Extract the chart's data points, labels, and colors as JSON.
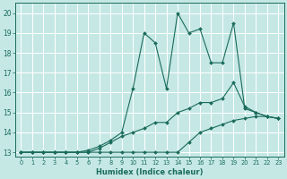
{
  "xlabel": "Humidex (Indice chaleur)",
  "xlim": [
    -0.5,
    23.5
  ],
  "ylim": [
    12.8,
    20.5
  ],
  "yticks": [
    13,
    14,
    15,
    16,
    17,
    18,
    19,
    20
  ],
  "xticks": [
    0,
    1,
    2,
    3,
    4,
    5,
    6,
    7,
    8,
    9,
    10,
    11,
    12,
    13,
    14,
    15,
    16,
    17,
    18,
    19,
    20,
    21,
    22,
    23
  ],
  "background_color": "#c5e8e5",
  "grid_color": "#ffffff",
  "line_color": "#1a6b5a",
  "lines": [
    {
      "x": [
        0,
        1,
        2,
        3,
        4,
        5,
        6,
        7,
        8,
        9,
        10,
        11,
        12,
        13,
        14,
        15,
        16,
        17,
        18,
        19,
        20,
        21,
        22,
        23
      ],
      "y": [
        13.0,
        13.0,
        13.0,
        13.0,
        13.0,
        13.0,
        13.0,
        13.0,
        13.0,
        13.0,
        13.0,
        13.0,
        13.0,
        13.0,
        13.0,
        13.5,
        14.0,
        14.2,
        14.4,
        14.6,
        14.7,
        14.8,
        14.8,
        14.7
      ]
    },
    {
      "x": [
        0,
        1,
        2,
        3,
        4,
        5,
        6,
        7,
        8,
        9,
        10,
        11,
        12,
        13,
        14,
        15,
        16,
        17,
        18,
        19,
        20,
        21,
        22,
        23
      ],
      "y": [
        13.0,
        13.0,
        13.0,
        13.0,
        13.0,
        13.0,
        13.0,
        13.2,
        13.5,
        13.8,
        14.0,
        14.2,
        14.5,
        14.5,
        15.0,
        15.2,
        15.5,
        15.5,
        15.7,
        16.5,
        15.3,
        15.0,
        14.8,
        14.7
      ]
    },
    {
      "x": [
        0,
        1,
        2,
        3,
        4,
        5,
        6,
        7,
        8,
        9,
        10,
        11,
        12,
        13,
        14,
        15,
        16,
        17,
        18,
        19,
        20,
        21,
        22,
        23
      ],
      "y": [
        13.0,
        13.0,
        13.0,
        13.0,
        13.0,
        13.0,
        13.1,
        13.3,
        13.6,
        14.0,
        16.2,
        19.0,
        18.5,
        16.2,
        20.0,
        19.0,
        19.2,
        17.5,
        17.5,
        19.5,
        15.2,
        15.0,
        14.8,
        14.7
      ]
    }
  ]
}
